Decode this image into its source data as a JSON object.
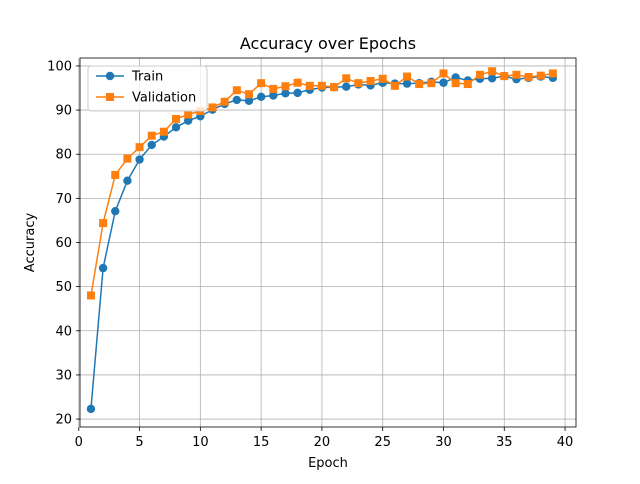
{
  "chart_data": {
    "type": "line",
    "title": "Accuracy over Epochs",
    "xlabel": "Epoch",
    "ylabel": "Accuracy",
    "xlim": [
      0.1,
      40.9
    ],
    "ylim": [
      18.2,
      101.8
    ],
    "xticks": [
      0,
      5,
      10,
      15,
      20,
      25,
      30,
      35,
      40
    ],
    "yticks": [
      20,
      30,
      40,
      50,
      60,
      70,
      80,
      90,
      100
    ],
    "grid": true,
    "legend_position": "upper-left",
    "x": [
      1,
      2,
      3,
      4,
      5,
      6,
      7,
      8,
      9,
      10,
      11,
      12,
      13,
      14,
      15,
      16,
      17,
      18,
      19,
      20,
      21,
      22,
      23,
      24,
      25,
      26,
      27,
      28,
      29,
      30,
      31,
      32,
      33,
      34,
      35,
      36,
      37,
      38,
      39
    ],
    "series": [
      {
        "name": "Train",
        "color": "#1f77b4",
        "marker": "circle",
        "values": [
          22.3,
          54.2,
          67.1,
          74.0,
          78.8,
          82.1,
          84.0,
          86.1,
          87.6,
          88.6,
          90.1,
          91.4,
          92.3,
          92.1,
          93.0,
          93.3,
          93.8,
          93.9,
          94.6,
          95.1,
          95.2,
          95.3,
          95.8,
          95.6,
          96.2,
          96.0,
          96.0,
          96.1,
          96.4,
          96.2,
          97.4,
          96.7,
          97.1,
          97.2,
          97.7,
          97.0,
          97.3,
          97.6,
          97.3
        ]
      },
      {
        "name": "Validation",
        "color": "#ff7f0e",
        "marker": "square",
        "values": [
          48.0,
          64.4,
          75.3,
          79.0,
          81.6,
          84.2,
          85.1,
          88.0,
          89.0,
          89.8,
          90.6,
          91.9,
          94.5,
          93.6,
          96.1,
          94.8,
          95.4,
          96.2,
          95.5,
          95.5,
          95.2,
          97.2,
          96.1,
          96.6,
          97.1,
          95.5,
          97.6,
          95.9,
          96.1,
          98.3,
          96.1,
          95.9,
          98.0,
          98.8,
          97.7,
          98.0,
          97.5,
          97.8,
          98.3
        ]
      }
    ]
  }
}
